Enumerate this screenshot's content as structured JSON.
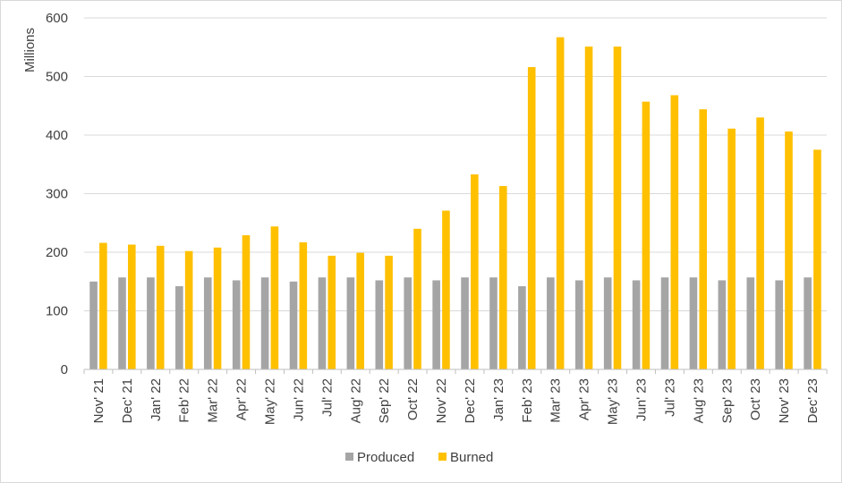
{
  "chart_data": {
    "type": "bar",
    "ylabel": "Millions",
    "ylim": [
      0,
      600
    ],
    "yticks": [
      "0",
      "100",
      "200",
      "300",
      "400",
      "500",
      "600"
    ],
    "grid": "horizontal",
    "legend_position": "bottom",
    "categories": [
      "Nov' 21",
      "Dec' 21",
      "Jan' 22",
      "Feb' 22",
      "Mar' 22",
      "Apr' 22",
      "May' 22",
      "Jun' 22",
      "Jul' 22",
      "Aug' 22",
      "Sep' 22",
      "Oct' 22",
      "Nov' 22",
      "Dec' 22",
      "Jan' 23",
      "Feb' 23",
      "Mar' 23",
      "Apr' 23",
      "May' 23",
      "Jun' 23",
      "Jul' 23",
      "Aug' 23",
      "Sep' 23",
      "Oct' 23",
      "Nov' 23",
      "Dec' 23"
    ],
    "series": [
      {
        "name": "Produced",
        "color": "#a5a5a5",
        "values": [
          150,
          157,
          157,
          142,
          157,
          152,
          157,
          150,
          157,
          157,
          152,
          157,
          152,
          157,
          157,
          142,
          157,
          152,
          157,
          152,
          157,
          157,
          152,
          157,
          152,
          157
        ]
      },
      {
        "name": "Burned",
        "color": "#ffc000",
        "values": [
          216,
          213,
          211,
          202,
          208,
          229,
          244,
          217,
          194,
          199,
          194,
          240,
          271,
          333,
          313,
          516,
          567,
          551,
          551,
          457,
          468,
          444,
          411,
          430,
          406,
          375
        ]
      }
    ]
  }
}
